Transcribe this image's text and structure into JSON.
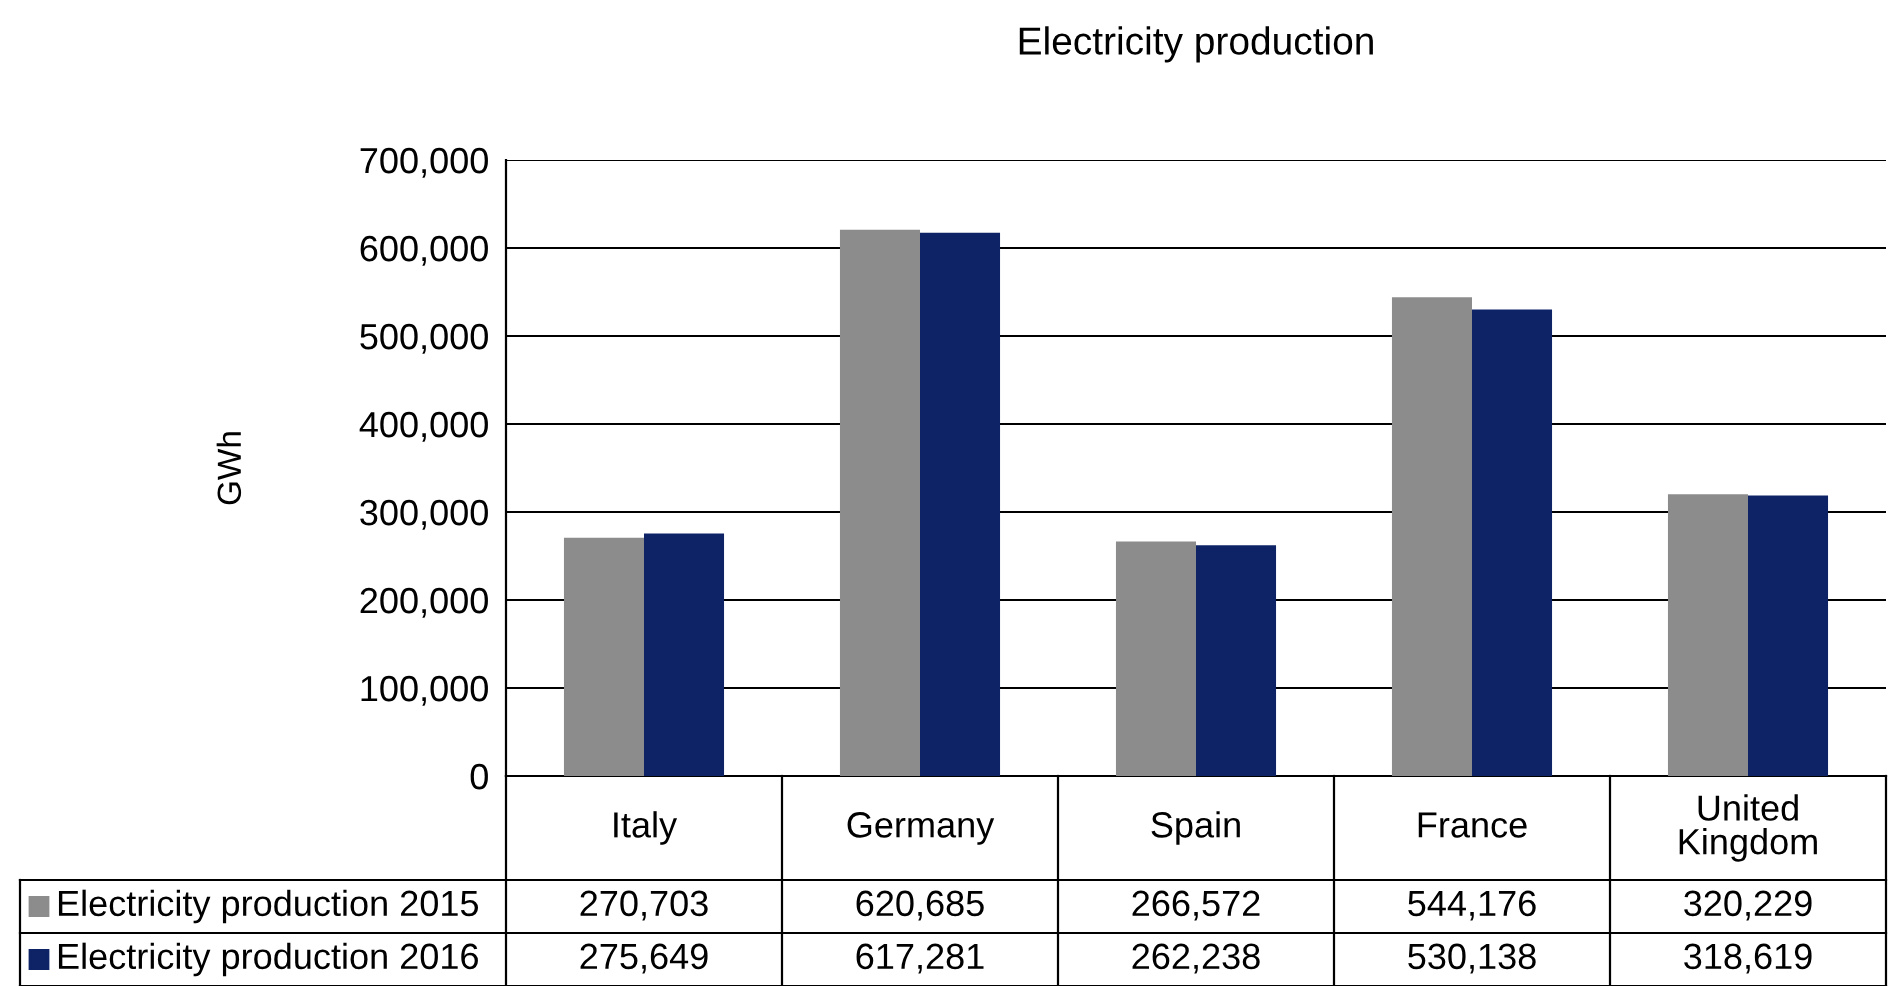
{
  "chart_data": {
    "type": "bar",
    "title": "Electricity production",
    "ylabel": "GWh",
    "categories": [
      "Italy",
      "Germany",
      "Spain",
      "France",
      "United Kingdom"
    ],
    "series": [
      {
        "name": "Electricity production 2015",
        "color": "#8c8c8c",
        "values": [
          270703,
          620685,
          266572,
          544176,
          320229
        ],
        "value_labels": [
          "270,703",
          "620,685",
          "266,572",
          "544,176",
          "320,229"
        ]
      },
      {
        "name": "Electricity production 2016",
        "color": "#0d2366",
        "values": [
          275649,
          617281,
          262238,
          530138,
          318619
        ],
        "value_labels": [
          "275,649",
          "617,281",
          "262,238",
          "530,138",
          "318,619"
        ]
      }
    ],
    "ylim": [
      0,
      700000
    ],
    "yticks": [
      {
        "value": 0,
        "label": "0"
      },
      {
        "value": 100000,
        "label": "100,000"
      },
      {
        "value": 200000,
        "label": "200,000"
      },
      {
        "value": 300000,
        "label": "300,000"
      },
      {
        "value": 400000,
        "label": "400,000"
      },
      {
        "value": 500000,
        "label": "500,000"
      },
      {
        "value": 600000,
        "label": "600,000"
      },
      {
        "value": 700000,
        "label": "700,000"
      }
    ],
    "grid": "y",
    "legend": "bottom"
  }
}
